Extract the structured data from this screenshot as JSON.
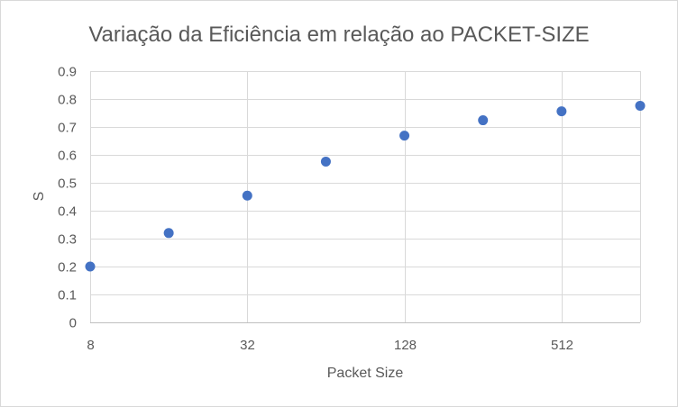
{
  "chart_data": {
    "type": "scatter",
    "title": "Variação da Eficiência em relação ao PACKET-SIZE",
    "xlabel": "Packet Size",
    "ylabel": "S",
    "x_scale": "log2",
    "xlim": [
      8,
      1024
    ],
    "ylim": [
      0,
      0.9
    ],
    "x_ticks": [
      8,
      32,
      128,
      512
    ],
    "x_tick_labels": [
      "8",
      "32",
      "128",
      "512"
    ],
    "y_ticks": [
      0,
      0.1,
      0.2,
      0.3,
      0.4,
      0.5,
      0.6,
      0.7,
      0.8,
      0.9
    ],
    "y_tick_labels": [
      "0",
      "0.1",
      "0.2",
      "0.3",
      "0.4",
      "0.5",
      "0.6",
      "0.7",
      "0.8",
      "0.9"
    ],
    "grid": true,
    "legend": "none",
    "marker_color": "#4472c4",
    "series": [
      {
        "points": [
          {
            "x": 8,
            "y": 0.2
          },
          {
            "x": 16,
            "y": 0.32
          },
          {
            "x": 32,
            "y": 0.454
          },
          {
            "x": 64,
            "y": 0.576
          },
          {
            "x": 128,
            "y": 0.669
          },
          {
            "x": 256,
            "y": 0.724
          },
          {
            "x": 512,
            "y": 0.756
          },
          {
            "x": 1024,
            "y": 0.776
          }
        ]
      }
    ]
  }
}
